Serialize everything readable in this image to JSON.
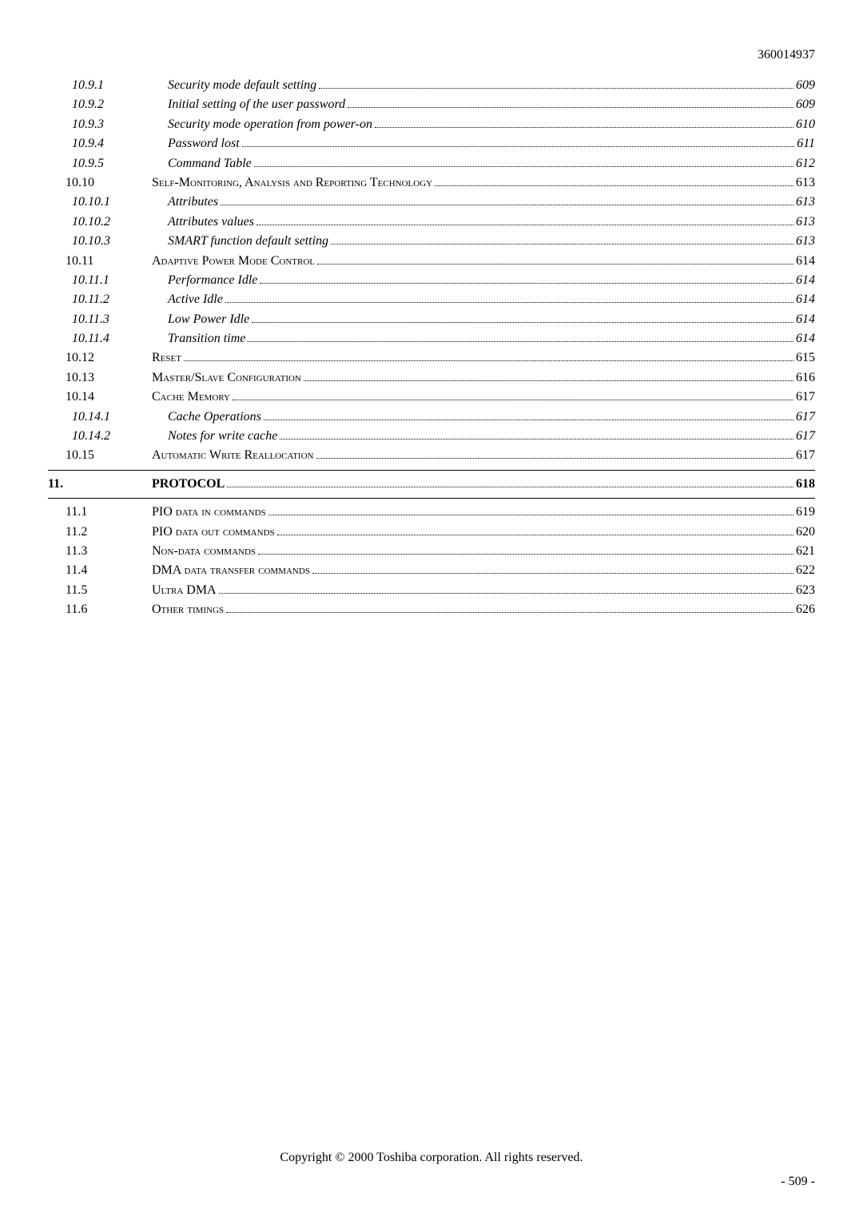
{
  "doc_number": "360014937",
  "footer": {
    "copyright": "Copyright © 2000 Toshiba corporation. All rights reserved.",
    "page": "- 509 -"
  },
  "toc": [
    {
      "level": "lvl3",
      "style": "ital",
      "num": "10.9.1",
      "title": "Security mode default setting",
      "page": "609"
    },
    {
      "level": "lvl3",
      "style": "ital",
      "num": "10.9.2",
      "title": "Initial setting of the user password",
      "page": "609"
    },
    {
      "level": "lvl3",
      "style": "ital",
      "num": "10.9.3",
      "title": "Security mode operation from power-on",
      "page": "610"
    },
    {
      "level": "lvl3",
      "style": "ital",
      "num": "10.9.4",
      "title": "Password lost",
      "page": "611"
    },
    {
      "level": "lvl3",
      "style": "ital",
      "num": "10.9.5",
      "title": "Command Table",
      "page": "612"
    },
    {
      "level": "lvl2",
      "style": "sc",
      "num": "10.10",
      "title": "Self-Monitoring, Analysis and Reporting Technology",
      "page": "613"
    },
    {
      "level": "lvl3",
      "style": "ital",
      "num": "10.10.1",
      "title": "Attributes",
      "page": "613"
    },
    {
      "level": "lvl3",
      "style": "ital",
      "num": "10.10.2",
      "title": "Attributes values",
      "page": "613"
    },
    {
      "level": "lvl3",
      "style": "ital",
      "num": "10.10.3",
      "title": "SMART function default setting",
      "page": "613"
    },
    {
      "level": "lvl2",
      "style": "sc",
      "num": "10.11",
      "title": "Adaptive Power Mode Control",
      "page": "614"
    },
    {
      "level": "lvl3",
      "style": "ital",
      "num": "10.11.1",
      "title": "Performance Idle",
      "page": "614"
    },
    {
      "level": "lvl3",
      "style": "ital",
      "num": "10.11.2",
      "title": "Active Idle",
      "page": "614"
    },
    {
      "level": "lvl3",
      "style": "ital",
      "num": "10.11.3",
      "title": "Low Power Idle",
      "page": "614"
    },
    {
      "level": "lvl3",
      "style": "ital",
      "num": "10.11.4",
      "title": "Transition time",
      "page": "614"
    },
    {
      "level": "lvl2",
      "style": "sc",
      "num": "10.12",
      "title": "Reset",
      "page": "615"
    },
    {
      "level": "lvl2",
      "style": "sc",
      "num": "10.13",
      "title": "Master/Slave Configuration",
      "page": "616"
    },
    {
      "level": "lvl2",
      "style": "sc",
      "num": "10.14",
      "title": "Cache Memory",
      "page": "617"
    },
    {
      "level": "lvl3",
      "style": "ital",
      "num": "10.14.1",
      "title": "Cache Operations",
      "page": "617"
    },
    {
      "level": "lvl3",
      "style": "ital",
      "num": "10.14.2",
      "title": "Notes for write cache",
      "page": "617"
    },
    {
      "level": "lvl2",
      "style": "sc",
      "num": "10.15",
      "title": "Automatic Write Reallocation",
      "page": "617"
    }
  ],
  "chapter": {
    "num": "11.",
    "title": "PROTOCOL",
    "page": "618"
  },
  "toc2": [
    {
      "level": "lvl2",
      "style": "sc",
      "num": "11.1",
      "title": "PIO data in commands",
      "page": "619"
    },
    {
      "level": "lvl2",
      "style": "sc",
      "num": "11.2",
      "title": "PIO data out commands",
      "page": "620"
    },
    {
      "level": "lvl2",
      "style": "sc",
      "num": "11.3",
      "title": "Non-data commands",
      "page": "621"
    },
    {
      "level": "lvl2",
      "style": "sc",
      "num": "11.4",
      "title": "DMA data transfer commands",
      "page": "622"
    },
    {
      "level": "lvl2",
      "style": "sc",
      "num": "11.5",
      "title": "Ultra DMA",
      "page": "623"
    },
    {
      "level": "lvl2",
      "style": "sc",
      "num": "11.6",
      "title": "Other timings",
      "page": "626"
    }
  ],
  "colors": {
    "text": "#000000",
    "background": "#ffffff"
  },
  "typography": {
    "body_font": "Times New Roman",
    "body_size_pt": 12,
    "bold_chapter_size_pt": 12
  }
}
